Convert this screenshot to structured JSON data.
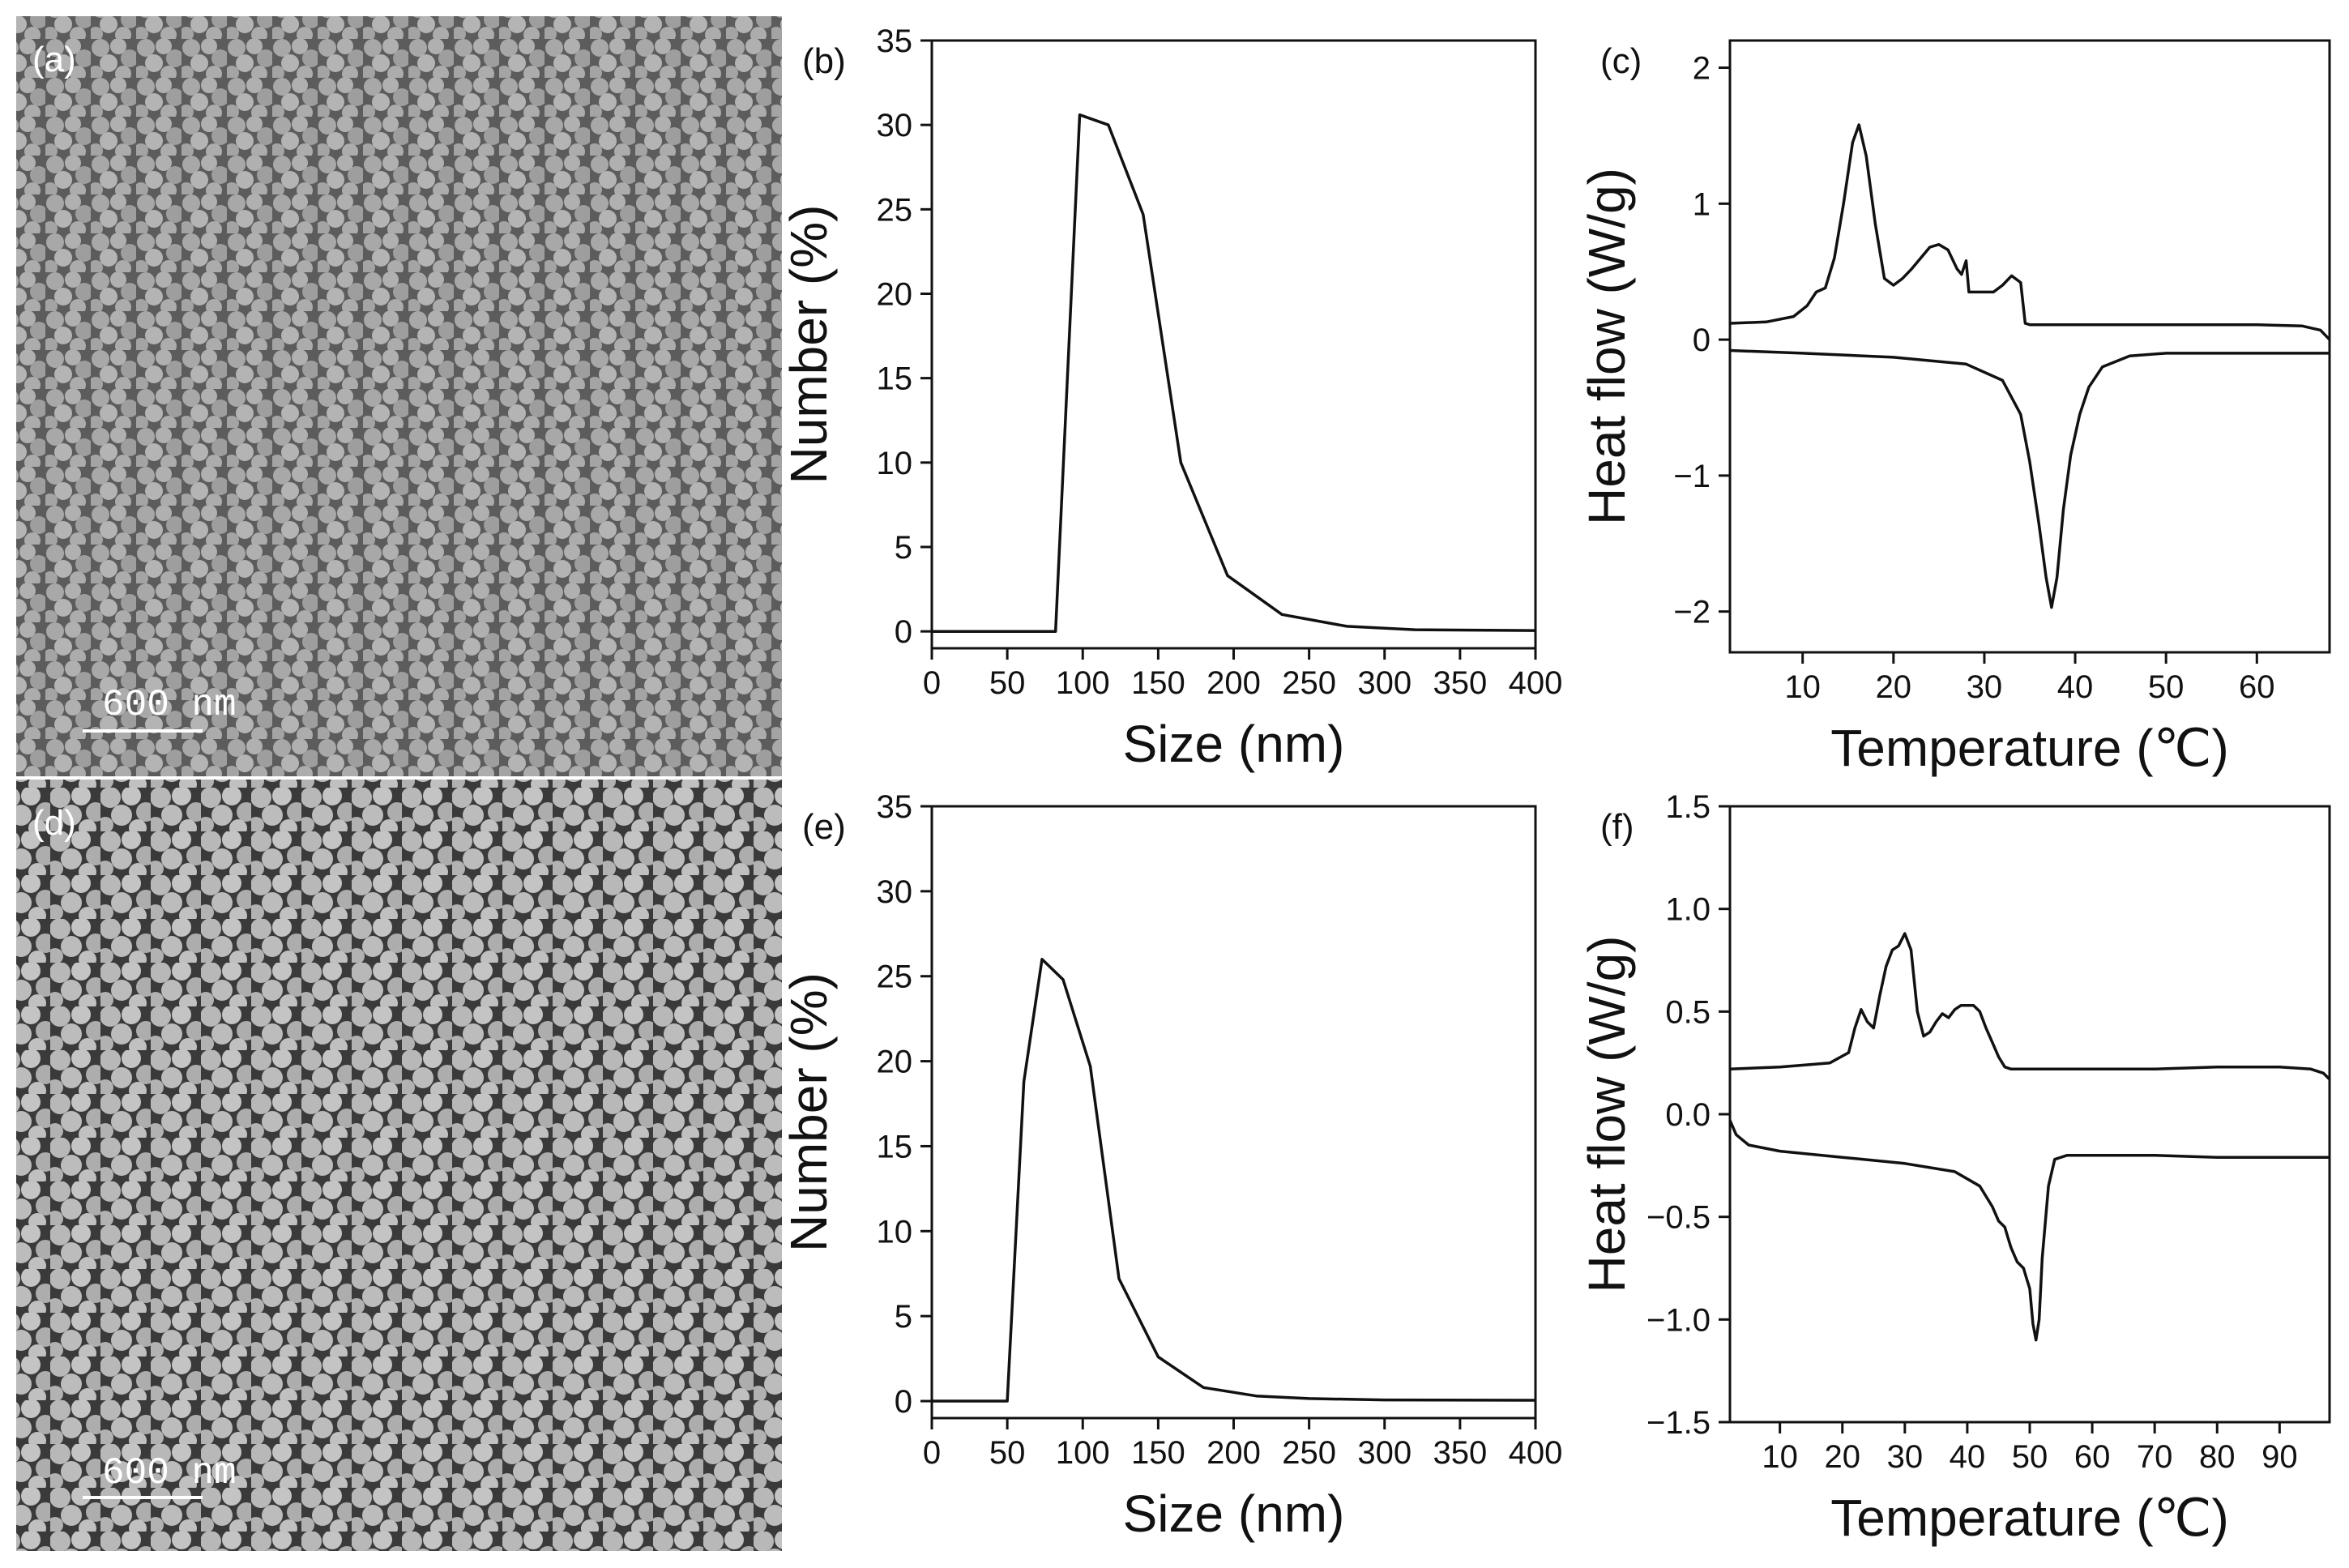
{
  "sem_panels": [
    {
      "letter": "(a)",
      "scale_bar": "600 nm"
    },
    {
      "letter": "(d)",
      "scale_bar": "600 nm"
    }
  ],
  "chart_data": [
    {
      "panel": "(b)",
      "type": "line",
      "xlabel": "Size (nm)",
      "ylabel": "Number (%)",
      "xlim": [
        0,
        400
      ],
      "ylim": [
        -1,
        35
      ],
      "xticks": [
        0,
        50,
        100,
        150,
        200,
        250,
        300,
        350,
        400
      ],
      "yticks": [
        0,
        5,
        10,
        15,
        20,
        25,
        30,
        35
      ],
      "x": [
        0,
        82,
        98,
        117,
        140,
        165,
        196,
        232,
        275,
        320,
        400
      ],
      "y": [
        0,
        0,
        30.6,
        30.0,
        24.7,
        10.0,
        3.3,
        1.0,
        0.3,
        0.1,
        0.05
      ]
    },
    {
      "panel": "(c)",
      "type": "line",
      "xlabel": "Temperature (℃)",
      "ylabel": "Heat flow (W/g)",
      "xlim": [
        2,
        68
      ],
      "ylim": [
        -2.3,
        2.2
      ],
      "xticks": [
        10,
        20,
        30,
        40,
        50,
        60
      ],
      "yticks": [
        -2,
        -1,
        0,
        1,
        2
      ],
      "series": [
        {
          "x": [
            2,
            6,
            9,
            10.5,
            11.5,
            12.5,
            13.5,
            14.5,
            15.5,
            16.2,
            17,
            18,
            19,
            20,
            21,
            22,
            23,
            24,
            25,
            26,
            27,
            27.5,
            28,
            28.3,
            28.5,
            31,
            32,
            33,
            34,
            34.5,
            35,
            40,
            50,
            60,
            65,
            67,
            68
          ],
          "y": [
            0.12,
            0.13,
            0.17,
            0.25,
            0.35,
            0.38,
            0.6,
            1.0,
            1.45,
            1.58,
            1.35,
            0.85,
            0.45,
            0.4,
            0.45,
            0.52,
            0.6,
            0.68,
            0.7,
            0.66,
            0.52,
            0.48,
            0.58,
            0.35,
            0.35,
            0.35,
            0.4,
            0.47,
            0.42,
            0.12,
            0.11,
            0.11,
            0.11,
            0.11,
            0.1,
            0.07,
            0.0
          ]
        },
        {
          "x": [
            2,
            10,
            20,
            28,
            32,
            34,
            35,
            36,
            36.8,
            37.4,
            38,
            38.7,
            39.5,
            40.5,
            41.5,
            43,
            46,
            50,
            60,
            68
          ],
          "y": [
            -0.08,
            -0.1,
            -0.13,
            -0.18,
            -0.3,
            -0.55,
            -0.9,
            -1.35,
            -1.75,
            -1.97,
            -1.75,
            -1.25,
            -0.85,
            -0.55,
            -0.35,
            -0.2,
            -0.12,
            -0.1,
            -0.1,
            -0.1
          ]
        }
      ]
    },
    {
      "panel": "(e)",
      "type": "line",
      "xlabel": "Size (nm)",
      "ylabel": "Number (%)",
      "xlim": [
        0,
        400
      ],
      "ylim": [
        -1,
        35
      ],
      "xticks": [
        0,
        50,
        100,
        150,
        200,
        250,
        300,
        350,
        400
      ],
      "yticks": [
        0,
        5,
        10,
        15,
        20,
        25,
        30,
        35
      ],
      "x": [
        0,
        50,
        61,
        73,
        87,
        105,
        124,
        150,
        180,
        215,
        250,
        300,
        400
      ],
      "y": [
        0,
        0,
        18.8,
        26.0,
        24.8,
        19.7,
        7.2,
        2.6,
        0.8,
        0.3,
        0.15,
        0.07,
        0.05
      ]
    },
    {
      "panel": "(f)",
      "type": "line",
      "xlabel": "Temperature (℃)",
      "ylabel": "Heat flow (W/g)",
      "xlim": [
        2,
        98
      ],
      "ylim": [
        -1.5,
        1.5
      ],
      "xticks": [
        10,
        20,
        30,
        40,
        50,
        60,
        70,
        80,
        90
      ],
      "yticks": [
        -1.5,
        -1.0,
        -0.5,
        0.0,
        0.5,
        1.0,
        1.5
      ],
      "series": [
        {
          "x": [
            2,
            10,
            18,
            21,
            22,
            23,
            24,
            25,
            26,
            27,
            28,
            29,
            30,
            31,
            32,
            33,
            34,
            35,
            36,
            37,
            38,
            39,
            40,
            41,
            42,
            43,
            44,
            45,
            46,
            47,
            50,
            60,
            70,
            80,
            90,
            95,
            97,
            98
          ],
          "y": [
            0.22,
            0.23,
            0.25,
            0.3,
            0.42,
            0.51,
            0.45,
            0.42,
            0.58,
            0.72,
            0.8,
            0.82,
            0.88,
            0.8,
            0.5,
            0.38,
            0.4,
            0.45,
            0.49,
            0.47,
            0.51,
            0.53,
            0.53,
            0.53,
            0.5,
            0.42,
            0.35,
            0.28,
            0.23,
            0.22,
            0.22,
            0.22,
            0.22,
            0.23,
            0.23,
            0.22,
            0.2,
            0.17
          ]
        },
        {
          "x": [
            2,
            3,
            5,
            10,
            20,
            30,
            38,
            42,
            44,
            45,
            46,
            46.5,
            47,
            48,
            49,
            49.5,
            50,
            50.5,
            51,
            51.5,
            52,
            53,
            54,
            56,
            60,
            70,
            80,
            90,
            98
          ],
          "y": [
            -0.03,
            -0.1,
            -0.15,
            -0.18,
            -0.21,
            -0.24,
            -0.28,
            -0.35,
            -0.45,
            -0.52,
            -0.55,
            -0.6,
            -0.65,
            -0.72,
            -0.75,
            -0.8,
            -0.85,
            -1.02,
            -1.1,
            -1.0,
            -0.7,
            -0.35,
            -0.22,
            -0.2,
            -0.2,
            -0.2,
            -0.21,
            -0.21,
            -0.21
          ]
        }
      ]
    }
  ]
}
